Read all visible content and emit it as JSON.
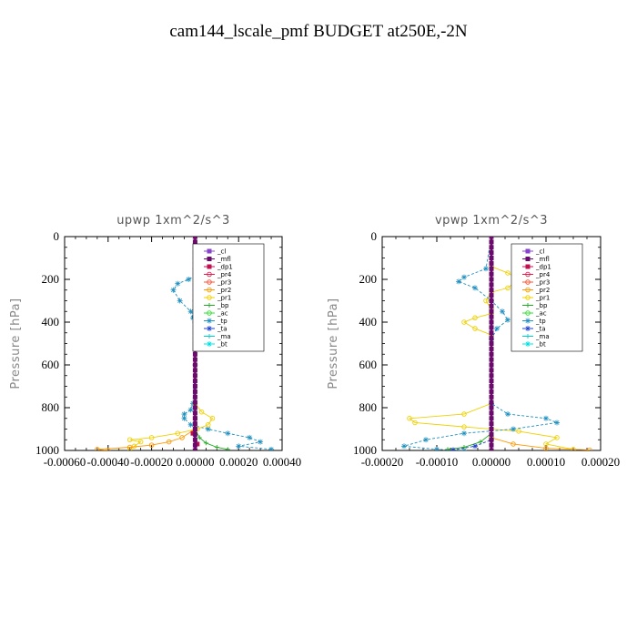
{
  "title": "cam144_lscale_pmf  BUDGET at250E,-2N",
  "colors": {
    "_cl": "#8844cc",
    "_mfl": "#6a0a6a",
    "_dp1": "#c01050",
    "_pr4": "#e02050",
    "_pr3": "#ff5030",
    "_pr2": "#ff9900",
    "_pr1": "#f0d000",
    "_bp": "#22aa22",
    "_ac": "#33dd33",
    "_tp": "#2090c0",
    "_ta": "#2040cc",
    "_ma": "#00cccc",
    "_bt": "#00e0e0"
  },
  "legend": [
    "_cl",
    "_mfl",
    "_dp1",
    "_pr4",
    "_pr3",
    "_pr2",
    "_pr1",
    "_bp",
    "_ac",
    "_tp",
    "_ta",
    "_ma",
    "_bt"
  ],
  "chart_data": [
    {
      "type": "line",
      "title": "upwp   1xm^2/s^3",
      "ylabel": "Pressure [hPa]",
      "xlim": [
        -0.0006,
        0.0004
      ],
      "ylim": [
        1000,
        0
      ],
      "xticks": [
        "-0.00060",
        "-0.00040",
        "-0.00020",
        "0.00000",
        "0.00020",
        "0.00040"
      ],
      "yticks": [
        "0",
        "200",
        "400",
        "600",
        "800",
        "1000"
      ],
      "legend_position": "top-right",
      "series": [
        {
          "name": "_tp",
          "x": [
            0.0,
            1e-05,
            2e-05,
            1e-05,
            -3e-05,
            -8e-05,
            -0.0001,
            -7e-05,
            -2e-05,
            -1e-05,
            0.0,
            0.0,
            -1e-05,
            -2e-05,
            -5e-05,
            -5e-05,
            -2e-05,
            6e-05,
            0.00015,
            0.00025,
            0.0003,
            0.0002,
            0.00035
          ],
          "y": [
            0,
            100,
            150,
            180,
            200,
            220,
            250,
            300,
            350,
            380,
            400,
            600,
            780,
            810,
            830,
            850,
            880,
            900,
            920,
            940,
            960,
            980,
            995
          ]
        },
        {
          "name": "_pr1",
          "x": [
            0.0,
            0.0,
            3e-05,
            7e-05,
            5e-05,
            2e-05,
            0.0,
            0.0,
            3e-05,
            8e-05,
            6e-05,
            1e-05,
            -8e-05,
            -0.0002,
            -0.0003,
            -0.00025,
            -0.00028,
            -0.0003
          ],
          "y": [
            0,
            150,
            180,
            210,
            240,
            270,
            300,
            780,
            820,
            850,
            880,
            900,
            920,
            940,
            950,
            960,
            980,
            995
          ]
        },
        {
          "name": "_pr2",
          "x": [
            0.0,
            0.0,
            -6e-05,
            -0.00012,
            -0.0002,
            -0.0003,
            -0.00045,
            -0.0004
          ],
          "y": [
            0,
            900,
            940,
            960,
            975,
            985,
            995,
            1000
          ]
        },
        {
          "name": "_bp",
          "x": [
            0.0,
            0.0,
            2e-05,
            5e-05,
            0.0001,
            0.00015
          ],
          "y": [
            0,
            900,
            940,
            965,
            985,
            995
          ]
        },
        {
          "name": "_dp1",
          "x": [
            0.0,
            0.0,
            -1e-05,
            1e-05,
            0.0
          ],
          "y": [
            0,
            850,
            920,
            970,
            1000
          ]
        },
        {
          "name": "_mfl",
          "x": [
            0.0,
            0.0
          ],
          "y": [
            0,
            1000
          ]
        }
      ]
    },
    {
      "type": "line",
      "title": "vpwp   1xm^2/s^3",
      "ylabel": "Pressure [hPa]",
      "xlim": [
        -0.0002,
        0.0002
      ],
      "ylim": [
        1000,
        0
      ],
      "xticks": [
        "-0.00020",
        "-0.00010",
        "0.00000",
        "0.00010",
        "0.00020"
      ],
      "yticks": [
        "0",
        "200",
        "400",
        "600",
        "800",
        "1000"
      ],
      "legend_position": "top-right",
      "series": [
        {
          "name": "_pr1",
          "x": [
            0.0,
            0.0,
            3e-05,
            5e-05,
            3e-05,
            0.0,
            -1e-05,
            0.0,
            0.0,
            -3e-05,
            -5e-05,
            -3e-05,
            0.0,
            0.0,
            -5e-05,
            -0.00015,
            -0.00014,
            -5e-05,
            5e-05,
            0.00012,
            0.0001,
            0.00015
          ],
          "y": [
            0,
            140,
            170,
            200,
            240,
            260,
            300,
            340,
            360,
            380,
            400,
            430,
            460,
            780,
            830,
            850,
            870,
            890,
            910,
            940,
            970,
            995
          ]
        },
        {
          "name": "_tp",
          "x": [
            0.0,
            -1e-05,
            -5e-05,
            -6e-05,
            -3e-05,
            0.0,
            2e-05,
            3e-05,
            1e-05,
            0.0,
            0.0,
            3e-05,
            0.0001,
            0.00012,
            4e-05,
            -5e-05,
            -0.00012,
            -0.00016,
            -0.0001,
            -5e-05
          ],
          "y": [
            0,
            150,
            190,
            210,
            240,
            300,
            350,
            390,
            430,
            480,
            780,
            830,
            850,
            870,
            900,
            920,
            950,
            980,
            995,
            1000
          ]
        },
        {
          "name": "_bp",
          "x": [
            0.0,
            0.0,
            -2e-05,
            -5e-05,
            -8e-05
          ],
          "y": [
            0,
            920,
            960,
            985,
            995
          ]
        },
        {
          "name": "_pr2",
          "x": [
            0.0,
            0.0,
            4e-05,
            0.0001,
            0.00018
          ],
          "y": [
            0,
            940,
            970,
            990,
            998
          ]
        },
        {
          "name": "_ta",
          "x": [
            0.0,
            0.0,
            -3e-05,
            -7e-05
          ],
          "y": [
            0,
            950,
            980,
            998
          ]
        },
        {
          "name": "_mfl",
          "x": [
            0.0,
            0.0
          ],
          "y": [
            0,
            1000
          ]
        }
      ]
    }
  ]
}
